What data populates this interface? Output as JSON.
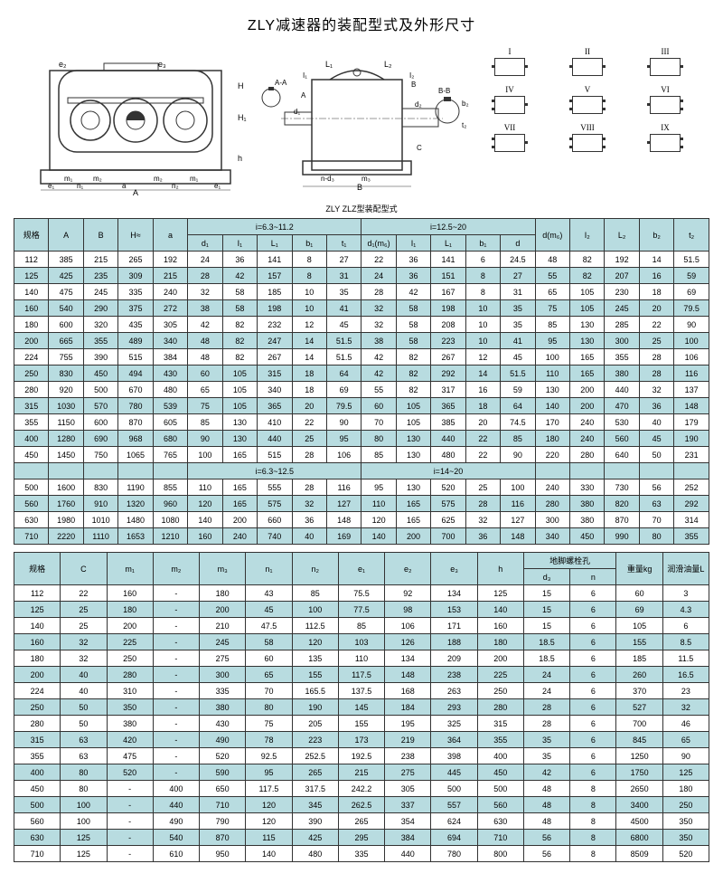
{
  "title": "ZLY减速器的装配型式及外形尺寸",
  "caption": "ZLY ZLZ型装配型式",
  "configs": [
    "I",
    "II",
    "III",
    "IV",
    "V",
    "VI",
    "VII",
    "VIII",
    "IX"
  ],
  "dim_labels": {
    "front": [
      "e₂",
      "e₃",
      "H≈",
      "H₁",
      "h",
      "m₁",
      "m₂",
      "m₂",
      "m₁",
      "e₁",
      "n₁",
      "a",
      "n₂",
      "e₁",
      "A",
      "B"
    ],
    "section_aa": "A-A",
    "section_bb": "B-B",
    "side": [
      "L₁",
      "L₂",
      "I₁",
      "I₂",
      "A",
      "B",
      "d₁",
      "d₂",
      "b₁",
      "b₂",
      "t₁",
      "t₂",
      "C",
      "m₃",
      "n-d₃",
      "B"
    ]
  },
  "table1": {
    "header_groups": [
      "i=6.3~11.2",
      "i=12.5~20"
    ],
    "header_groups2": [
      "i=6.3~12.5",
      "i=14~20"
    ],
    "cols": [
      "规格",
      "A",
      "B",
      "H≈",
      "a",
      "d₁",
      "I₁",
      "L₁",
      "b₁",
      "t₁",
      "d₁(m₆)",
      "I₁",
      "L₁",
      "b₁",
      "d",
      "d(m₆)",
      "I₂",
      "L₂",
      "b₂",
      "t₂"
    ],
    "rows": [
      [
        "112",
        "385",
        "215",
        "265",
        "192",
        "24",
        "36",
        "141",
        "8",
        "27",
        "22",
        "36",
        "141",
        "6",
        "24.5",
        "48",
        "82",
        "192",
        "14",
        "51.5"
      ],
      [
        "125",
        "425",
        "235",
        "309",
        "215",
        "28",
        "42",
        "157",
        "8",
        "31",
        "24",
        "36",
        "151",
        "8",
        "27",
        "55",
        "82",
        "207",
        "16",
        "59"
      ],
      [
        "140",
        "475",
        "245",
        "335",
        "240",
        "32",
        "58",
        "185",
        "10",
        "35",
        "28",
        "42",
        "167",
        "8",
        "31",
        "65",
        "105",
        "230",
        "18",
        "69"
      ],
      [
        "160",
        "540",
        "290",
        "375",
        "272",
        "38",
        "58",
        "198",
        "10",
        "41",
        "32",
        "58",
        "198",
        "10",
        "35",
        "75",
        "105",
        "245",
        "20",
        "79.5"
      ],
      [
        "180",
        "600",
        "320",
        "435",
        "305",
        "42",
        "82",
        "232",
        "12",
        "45",
        "32",
        "58",
        "208",
        "10",
        "35",
        "85",
        "130",
        "285",
        "22",
        "90"
      ],
      [
        "200",
        "665",
        "355",
        "489",
        "340",
        "48",
        "82",
        "247",
        "14",
        "51.5",
        "38",
        "58",
        "223",
        "10",
        "41",
        "95",
        "130",
        "300",
        "25",
        "100"
      ],
      [
        "224",
        "755",
        "390",
        "515",
        "384",
        "48",
        "82",
        "267",
        "14",
        "51.5",
        "42",
        "82",
        "267",
        "12",
        "45",
        "100",
        "165",
        "355",
        "28",
        "106"
      ],
      [
        "250",
        "830",
        "450",
        "494",
        "430",
        "60",
        "105",
        "315",
        "18",
        "64",
        "42",
        "82",
        "292",
        "14",
        "51.5",
        "110",
        "165",
        "380",
        "28",
        "116"
      ],
      [
        "280",
        "920",
        "500",
        "670",
        "480",
        "65",
        "105",
        "340",
        "18",
        "69",
        "55",
        "82",
        "317",
        "16",
        "59",
        "130",
        "200",
        "440",
        "32",
        "137"
      ],
      [
        "315",
        "1030",
        "570",
        "780",
        "539",
        "75",
        "105",
        "365",
        "20",
        "79.5",
        "60",
        "105",
        "365",
        "18",
        "64",
        "140",
        "200",
        "470",
        "36",
        "148"
      ],
      [
        "355",
        "1150",
        "600",
        "870",
        "605",
        "85",
        "130",
        "410",
        "22",
        "90",
        "70",
        "105",
        "385",
        "20",
        "74.5",
        "170",
        "240",
        "530",
        "40",
        "179"
      ],
      [
        "400",
        "1280",
        "690",
        "968",
        "680",
        "90",
        "130",
        "440",
        "25",
        "95",
        "80",
        "130",
        "440",
        "22",
        "85",
        "180",
        "240",
        "560",
        "45",
        "190"
      ],
      [
        "450",
        "1450",
        "750",
        "1065",
        "765",
        "100",
        "165",
        "515",
        "28",
        "106",
        "85",
        "130",
        "480",
        "22",
        "90",
        "220",
        "280",
        "640",
        "50",
        "231"
      ]
    ],
    "rows2": [
      [
        "500",
        "1600",
        "830",
        "1190",
        "855",
        "110",
        "165",
        "555",
        "28",
        "116",
        "95",
        "130",
        "520",
        "25",
        "100",
        "240",
        "330",
        "730",
        "56",
        "252"
      ],
      [
        "560",
        "1760",
        "910",
        "1320",
        "960",
        "120",
        "165",
        "575",
        "32",
        "127",
        "110",
        "165",
        "575",
        "28",
        "116",
        "280",
        "380",
        "820",
        "63",
        "292"
      ],
      [
        "630",
        "1980",
        "1010",
        "1480",
        "1080",
        "140",
        "200",
        "660",
        "36",
        "148",
        "120",
        "165",
        "625",
        "32",
        "127",
        "300",
        "380",
        "870",
        "70",
        "314"
      ],
      [
        "710",
        "2220",
        "1110",
        "1653",
        "1210",
        "160",
        "240",
        "740",
        "40",
        "169",
        "140",
        "200",
        "700",
        "36",
        "148",
        "340",
        "450",
        "990",
        "80",
        "355"
      ]
    ]
  },
  "table2": {
    "cols": [
      "规格",
      "C",
      "m₁",
      "m₂",
      "m₃",
      "n₁",
      "n₂",
      "e₁",
      "e₂",
      "e₃",
      "h",
      "d₃",
      "n",
      "重量kg",
      "润滑油量L"
    ],
    "bolt_header": "地脚螺栓孔",
    "rows": [
      [
        "112",
        "22",
        "160",
        "-",
        "180",
        "43",
        "85",
        "75.5",
        "92",
        "134",
        "125",
        "15",
        "6",
        "60",
        "3"
      ],
      [
        "125",
        "25",
        "180",
        "-",
        "200",
        "45",
        "100",
        "77.5",
        "98",
        "153",
        "140",
        "15",
        "6",
        "69",
        "4.3"
      ],
      [
        "140",
        "25",
        "200",
        "-",
        "210",
        "47.5",
        "112.5",
        "85",
        "106",
        "171",
        "160",
        "15",
        "6",
        "105",
        "6"
      ],
      [
        "160",
        "32",
        "225",
        "-",
        "245",
        "58",
        "120",
        "103",
        "126",
        "188",
        "180",
        "18.5",
        "6",
        "155",
        "8.5"
      ],
      [
        "180",
        "32",
        "250",
        "-",
        "275",
        "60",
        "135",
        "110",
        "134",
        "209",
        "200",
        "18.5",
        "6",
        "185",
        "11.5"
      ],
      [
        "200",
        "40",
        "280",
        "-",
        "300",
        "65",
        "155",
        "117.5",
        "148",
        "238",
        "225",
        "24",
        "6",
        "260",
        "16.5"
      ],
      [
        "224",
        "40",
        "310",
        "-",
        "335",
        "70",
        "165.5",
        "137.5",
        "168",
        "263",
        "250",
        "24",
        "6",
        "370",
        "23"
      ],
      [
        "250",
        "50",
        "350",
        "-",
        "380",
        "80",
        "190",
        "145",
        "184",
        "293",
        "280",
        "28",
        "6",
        "527",
        "32"
      ],
      [
        "280",
        "50",
        "380",
        "-",
        "430",
        "75",
        "205",
        "155",
        "195",
        "325",
        "315",
        "28",
        "6",
        "700",
        "46"
      ],
      [
        "315",
        "63",
        "420",
        "-",
        "490",
        "78",
        "223",
        "173",
        "219",
        "364",
        "355",
        "35",
        "6",
        "845",
        "65"
      ],
      [
        "355",
        "63",
        "475",
        "-",
        "520",
        "92.5",
        "252.5",
        "192.5",
        "238",
        "398",
        "400",
        "35",
        "6",
        "1250",
        "90"
      ],
      [
        "400",
        "80",
        "520",
        "-",
        "590",
        "95",
        "265",
        "215",
        "275",
        "445",
        "450",
        "42",
        "6",
        "1750",
        "125"
      ],
      [
        "450",
        "80",
        "-",
        "400",
        "650",
        "117.5",
        "317.5",
        "242.2",
        "305",
        "500",
        "500",
        "48",
        "8",
        "2650",
        "180"
      ],
      [
        "500",
        "100",
        "-",
        "440",
        "710",
        "120",
        "345",
        "262.5",
        "337",
        "557",
        "560",
        "48",
        "8",
        "3400",
        "250"
      ],
      [
        "560",
        "100",
        "-",
        "490",
        "790",
        "120",
        "390",
        "265",
        "354",
        "624",
        "630",
        "48",
        "8",
        "4500",
        "350"
      ],
      [
        "630",
        "125",
        "-",
        "540",
        "870",
        "115",
        "425",
        "295",
        "384",
        "694",
        "710",
        "56",
        "8",
        "6800",
        "350"
      ],
      [
        "710",
        "125",
        "-",
        "610",
        "950",
        "140",
        "480",
        "335",
        "440",
        "780",
        "800",
        "56",
        "8",
        "8509",
        "520"
      ]
    ]
  },
  "colors": {
    "header_bg": "#b8dce0",
    "border": "#333333",
    "page_bg": "#ffffff"
  }
}
